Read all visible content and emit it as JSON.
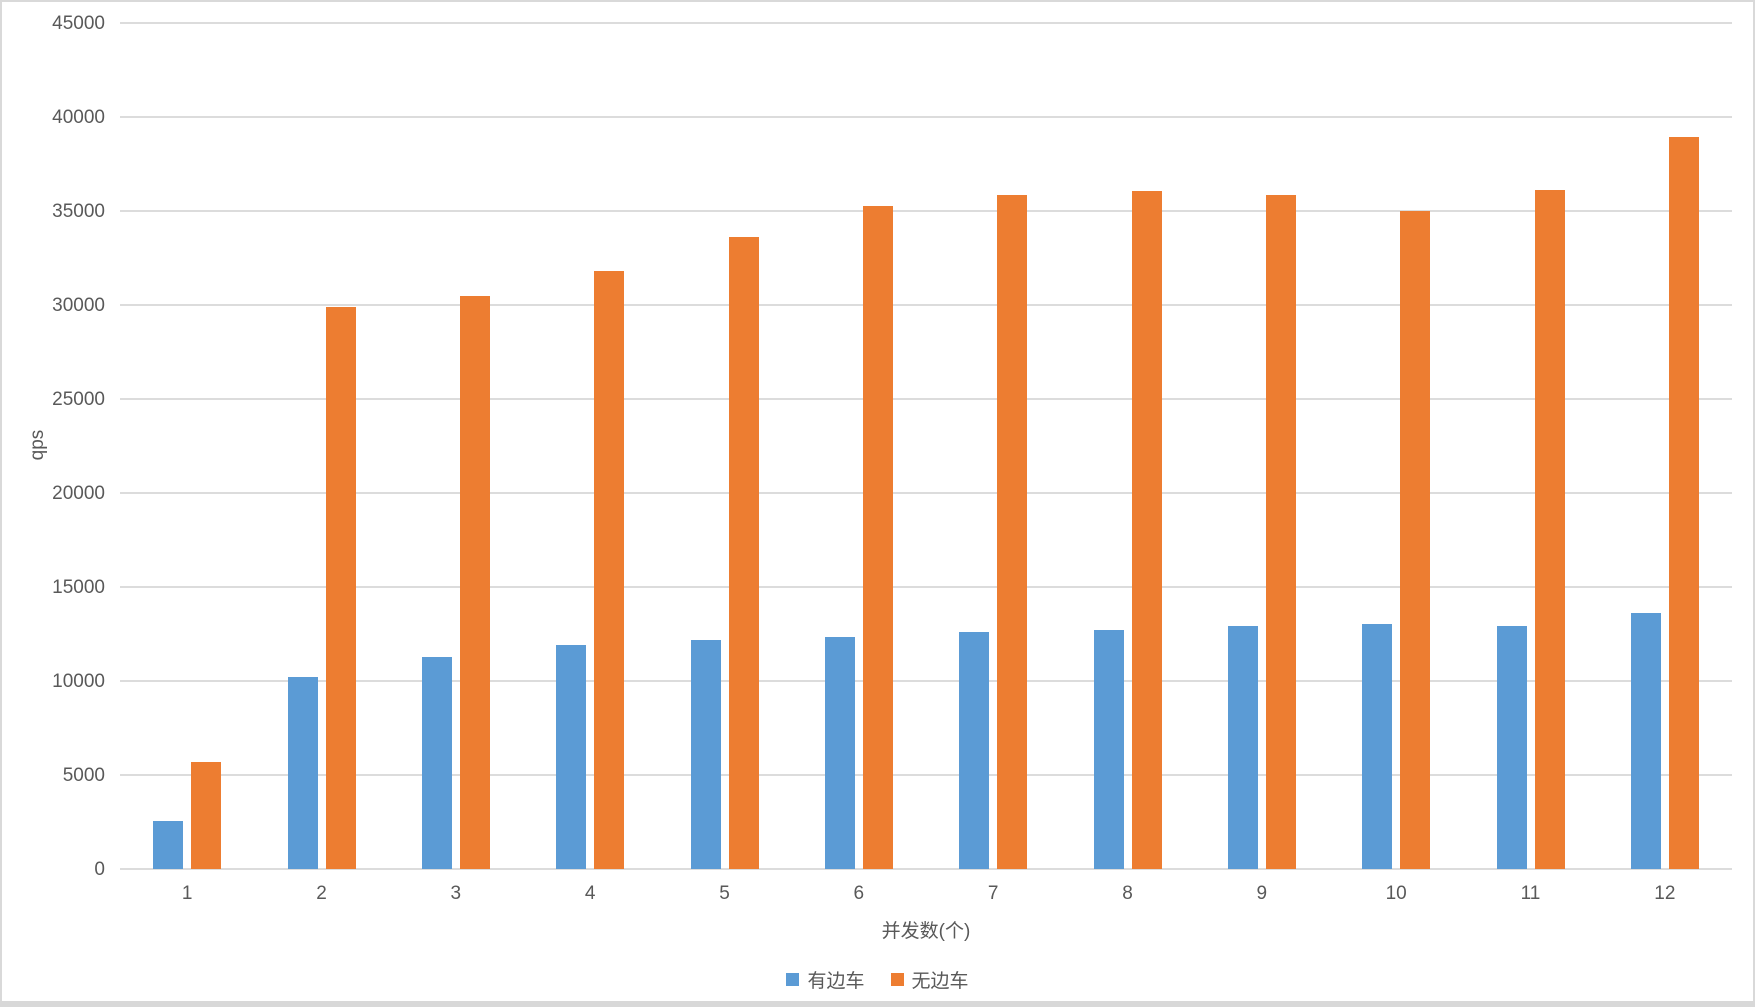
{
  "chart_data": {
    "type": "bar",
    "title": "",
    "categories": [
      "1",
      "2",
      "3",
      "4",
      "5",
      "6",
      "7",
      "8",
      "9",
      "10",
      "11",
      "12"
    ],
    "series": [
      {
        "name": "有边车",
        "color": "#5B9BD5",
        "values": [
          2550,
          10200,
          11300,
          11900,
          12200,
          12350,
          12600,
          12700,
          12950,
          13050,
          12950,
          13600
        ]
      },
      {
        "name": "无边车",
        "color": "#ED7D31",
        "values": [
          5700,
          29900,
          30500,
          31800,
          33600,
          35250,
          35850,
          36050,
          35850,
          35000,
          36100,
          38950
        ]
      }
    ],
    "xlabel": "并发数(个)",
    "ylabel": "qps",
    "ylim": [
      0,
      45000
    ],
    "ytick_step": 5000,
    "grid": true,
    "legend_position": "bottom"
  },
  "colors": {
    "grid": "#DCDCDC",
    "axis_text": "#595959",
    "background": "#FFFFFF",
    "frame_border": "#D9D9D9",
    "bottom_band": "#D8D8D8"
  }
}
